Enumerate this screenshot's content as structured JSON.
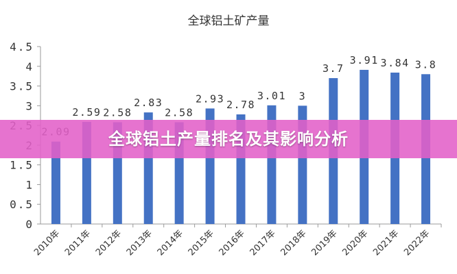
{
  "banner": {
    "text": "全球铝土产量排名及其影响分析"
  },
  "colors": {
    "bar": "#4472c4",
    "axis": "#9a9a9a",
    "tick_text": "#333333",
    "label_text": "#333333",
    "banner_bg": "#e260c8",
    "banner_text": "#ffffff"
  },
  "chart_data": {
    "type": "bar",
    "title": "全球铝土矿产量",
    "xlabel": "",
    "ylabel": "",
    "ylim": [
      0,
      4.5
    ],
    "yticks": [
      "0",
      "0.5",
      "1",
      "1.5",
      "2",
      "2.5",
      "3",
      "3.5",
      "4",
      "4.5"
    ],
    "grid": false,
    "legend": "none",
    "categories": [
      "2010年",
      "2011年",
      "2012年",
      "2013年",
      "2014年",
      "2015年",
      "2016年",
      "2017年",
      "2018年",
      "2019年",
      "2020年",
      "2021年",
      "2022年"
    ],
    "values": [
      2.09,
      2.59,
      2.58,
      2.83,
      2.58,
      2.93,
      2.78,
      3.01,
      3,
      3.7,
      3.91,
      3.84,
      3.8
    ],
    "data_labels": [
      "2.09",
      "2.59",
      "2.58",
      "2.83",
      "2.58",
      "2.93",
      "2.78",
      "3.01",
      "3",
      "3.7",
      "3.91",
      "3.84",
      "3.8"
    ]
  }
}
